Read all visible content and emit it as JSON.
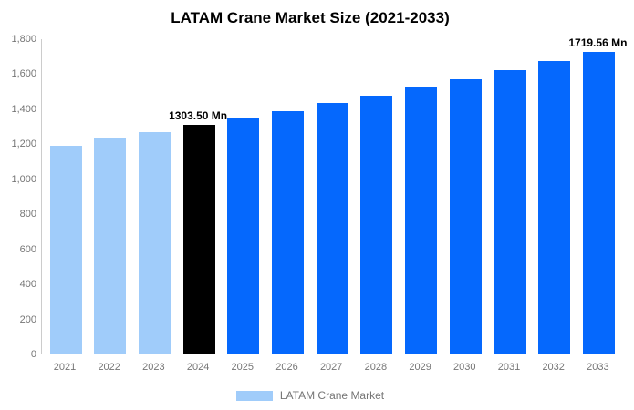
{
  "chart_data": {
    "type": "bar",
    "title": "LATAM Crane Market Size (2021-2033)",
    "unit": "Mn",
    "categories": [
      "2021",
      "2022",
      "2023",
      "2024",
      "2025",
      "2026",
      "2027",
      "2028",
      "2029",
      "2030",
      "2031",
      "2032",
      "2033"
    ],
    "values": [
      1188.5,
      1225.7,
      1264.0,
      1303.5,
      1344.3,
      1386.3,
      1429.6,
      1474.3,
      1520.4,
      1567.9,
      1616.9,
      1667.5,
      1719.56
    ],
    "value_labels": [
      {
        "category": "2024",
        "text": "1303.50 Mn"
      },
      {
        "category": "2033",
        "text": "1719.56 Mn"
      }
    ],
    "ylim": [
      0,
      1800
    ],
    "ytick_values": [
      0,
      200,
      400,
      600,
      800,
      1000,
      1200,
      1400,
      1600,
      1800
    ],
    "ytick_labels": [
      "0",
      "200",
      "400",
      "600",
      "800",
      "1,000",
      "1,200",
      "1,400",
      "1,600",
      "1,800"
    ],
    "grid": false,
    "legend": {
      "label": "LATAM Crane Market",
      "position": "bottom-center"
    },
    "colors": {
      "historical": "#A0CCFA",
      "highlight": "#000000",
      "forecast": "#0568FD",
      "axis_line": "#CCCCCC",
      "axis_text": "#757575",
      "title_text": "#000000",
      "value_label_text": "#000000"
    },
    "bar_roles": [
      "historical",
      "historical",
      "historical",
      "highlight",
      "forecast",
      "forecast",
      "forecast",
      "forecast",
      "forecast",
      "forecast",
      "forecast",
      "forecast",
      "forecast"
    ]
  }
}
